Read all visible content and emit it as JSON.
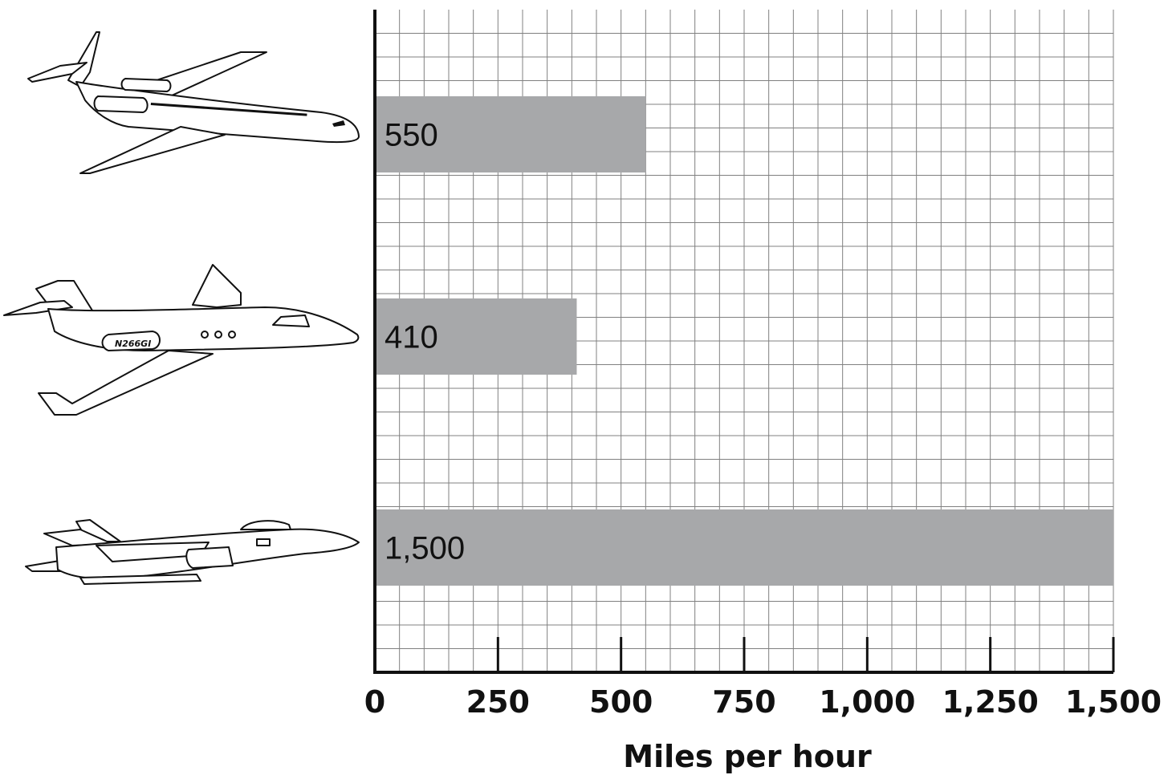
{
  "chart_data": {
    "type": "bar",
    "orientation": "horizontal",
    "categories": [
      "airliner",
      "business-jet",
      "fighter-jet"
    ],
    "values": [
      550,
      410,
      1500
    ],
    "value_labels": [
      "550",
      "410",
      "1,500"
    ],
    "xlabel": "Miles per hour",
    "xticks": [
      0,
      250,
      500,
      750,
      1000,
      1250,
      1500
    ],
    "xtick_labels": [
      "0",
      "250",
      "500",
      "750",
      "1,000",
      "1,250",
      "1,500"
    ],
    "xlim": [
      0,
      1500
    ],
    "grid": true,
    "grid_minor_step": 50,
    "bar_color": "#a7a8aa",
    "grid_color": "#808080",
    "category_icons": [
      "airliner-icon",
      "business-jet-icon",
      "fighter-jet-icon"
    ],
    "business_jet_registration": "N266GI"
  }
}
